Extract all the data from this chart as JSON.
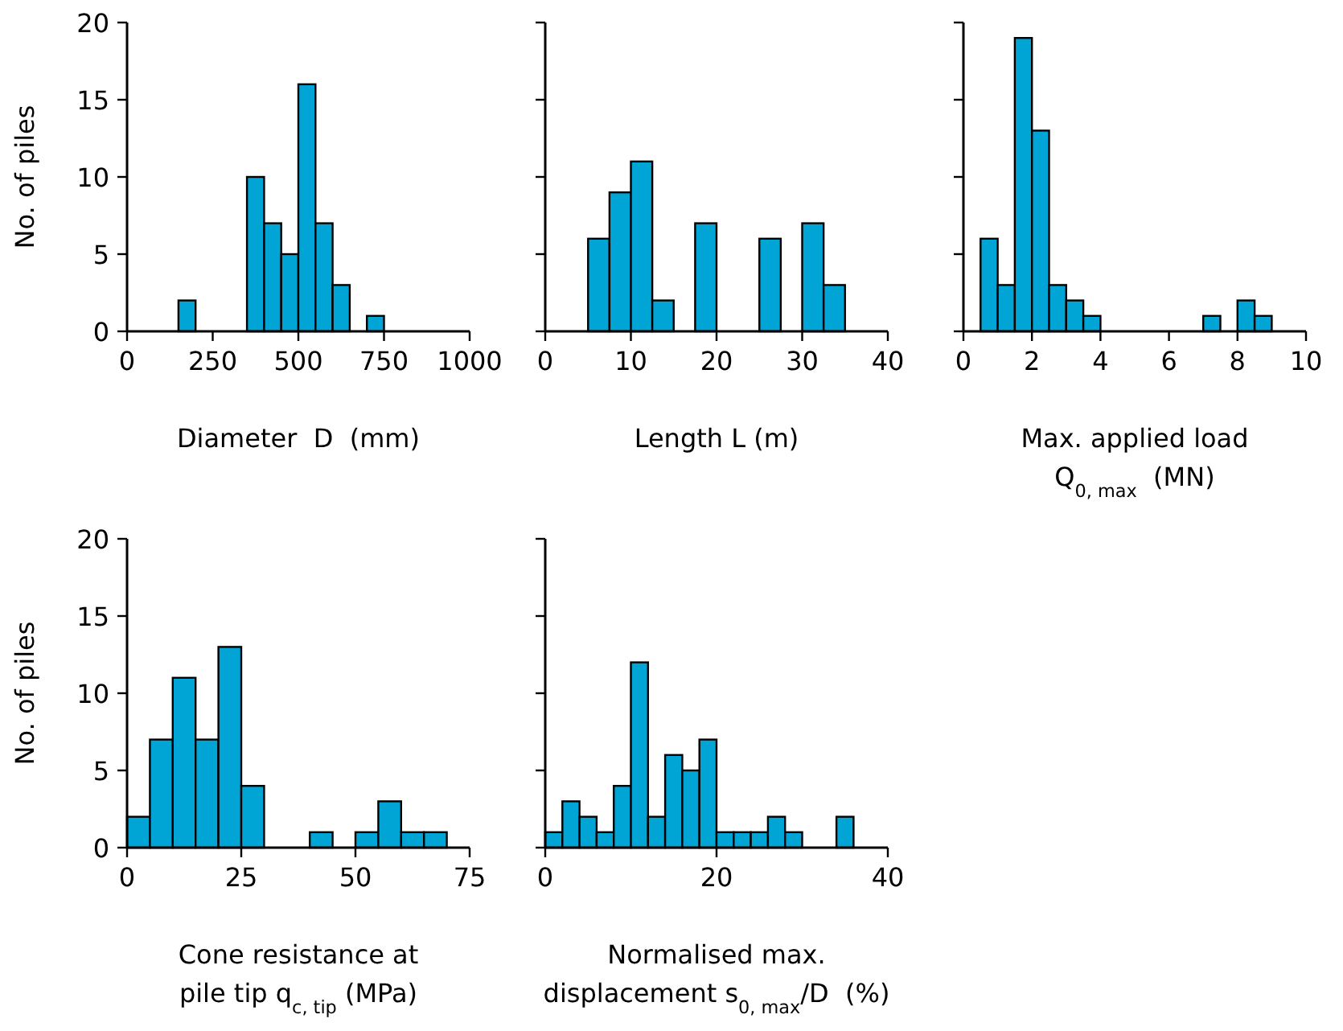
{
  "chart_data": [
    {
      "type": "histogram",
      "xlabel": "Diameter  D  (mm)",
      "ylabel": "No. of piles",
      "bins": [
        0,
        50,
        100,
        150,
        200,
        250,
        300,
        350,
        400,
        450,
        500,
        550,
        600,
        650,
        700,
        750,
        800,
        850,
        900,
        950
      ],
      "values": [
        0,
        0,
        0,
        2,
        0,
        0,
        0,
        10,
        7,
        5,
        16,
        7,
        3,
        0,
        1,
        0,
        0,
        0,
        0
      ],
      "color": "#00a5d6",
      "xlim": [
        0,
        1000
      ],
      "xticks": [
        0,
        250,
        500,
        750,
        1000
      ],
      "ylim": [
        0,
        20
      ],
      "yticks": [
        0,
        5,
        10,
        15,
        20
      ],
      "grid": false
    },
    {
      "type": "histogram",
      "xlabel": "Length L (m)",
      "bins": [
        0,
        2.5,
        5,
        7.5,
        10,
        12.5,
        15,
        17.5,
        20,
        22.5,
        25,
        27.5,
        30,
        32.5,
        35,
        37.5,
        40
      ],
      "values": [
        0,
        0,
        6,
        9,
        11,
        2,
        0,
        7,
        0,
        0,
        6,
        0,
        7,
        3,
        0,
        0
      ],
      "color": "#00a5d6",
      "xlim": [
        0,
        40
      ],
      "xticks": [
        0,
        10,
        20,
        30,
        40
      ],
      "ylim": [
        0,
        20
      ],
      "yticks": [
        0,
        5,
        10,
        15,
        20
      ],
      "tick_labels": "x",
      "grid": false
    },
    {
      "type": "histogram",
      "xlabel": "Max. applied load\nQ$_{0, max}$  (MN)",
      "bins": [
        0,
        0.5,
        1,
        1.5,
        2,
        2.5,
        3,
        3.5,
        4,
        4.5,
        5,
        5.5,
        6,
        6.5,
        7,
        7.5,
        8,
        8.5,
        9,
        9.5,
        10
      ],
      "values": [
        0,
        6,
        3,
        19,
        13,
        3,
        2,
        1,
        0,
        0,
        0,
        0,
        0,
        0,
        1,
        0,
        2,
        1,
        0,
        0
      ],
      "color": "#00a5d6",
      "xlim": [
        0,
        10
      ],
      "xticks": [
        0,
        2,
        4,
        6,
        8,
        10
      ],
      "ylim": [
        0,
        20
      ],
      "yticks": [
        0,
        5,
        10,
        15,
        20
      ],
      "tick_labels": "x",
      "grid": false
    },
    {
      "type": "histogram",
      "xlabel": "Cone resistance at\npile tip q$_{c, tip}$ (MPa)",
      "ylabel": "No. of piles",
      "bins": [
        0,
        5,
        10,
        15,
        20,
        25,
        30,
        35,
        40,
        45,
        50,
        55,
        60,
        65,
        70,
        75
      ],
      "values": [
        2,
        7,
        11,
        7,
        13,
        4,
        0,
        0,
        1,
        0,
        1,
        3,
        1,
        1,
        0
      ],
      "color": "#00a5d6",
      "xlim": [
        0,
        75
      ],
      "xticks": [
        0,
        25,
        50,
        75
      ],
      "ylim": [
        0,
        20
      ],
      "yticks": [
        0,
        5,
        10,
        15,
        20
      ],
      "grid": false
    },
    {
      "type": "histogram",
      "xlabel": "Normalised max.\ndisplacement s$_{0, max}$/D  (%)",
      "bins": [
        0,
        2,
        4,
        6,
        8,
        10,
        12,
        14,
        16,
        18,
        20,
        22,
        24,
        26,
        28,
        30,
        32,
        34,
        36,
        38,
        40
      ],
      "values": [
        1,
        3,
        2,
        1,
        4,
        12,
        2,
        6,
        5,
        7,
        1,
        1,
        1,
        2,
        1,
        0,
        0,
        2,
        0,
        0
      ],
      "color": "#00a5d6",
      "xlim": [
        0,
        40
      ],
      "xticks": [
        0,
        20,
        40
      ],
      "ylim": [
        0,
        20
      ],
      "yticks": [
        0,
        5,
        10,
        15,
        20
      ],
      "tick_labels": "x",
      "grid": false
    }
  ]
}
